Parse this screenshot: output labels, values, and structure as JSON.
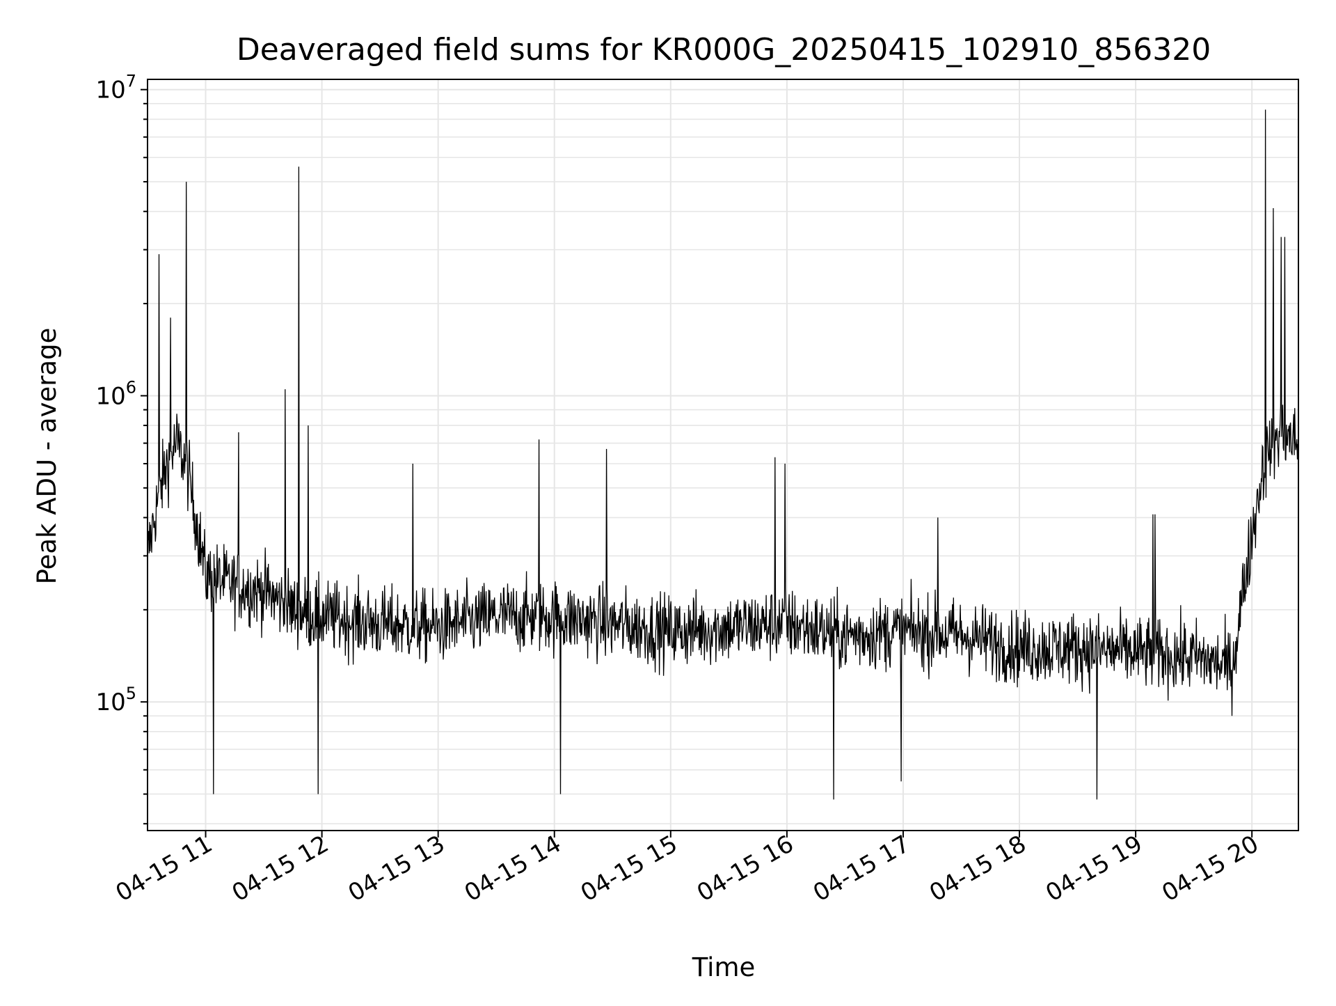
{
  "chart_data": {
    "type": "line",
    "title": "Deaveraged field sums for KR000G_20250415_102910_856320",
    "xlabel": "Time",
    "ylabel": "Peak ADU - average",
    "y_scale": "log",
    "ylim": [
      38000,
      10800000
    ],
    "xlim": [
      "2025-04-15 10:30",
      "2025-04-15 20:24"
    ],
    "grid": true,
    "line_color": "#000000",
    "grid_color": "#e6e6e6",
    "x_ticks": [
      {
        "value": "2025-04-15 11:00",
        "label": "04-15 11"
      },
      {
        "value": "2025-04-15 12:00",
        "label": "04-15 12"
      },
      {
        "value": "2025-04-15 13:00",
        "label": "04-15 13"
      },
      {
        "value": "2025-04-15 14:00",
        "label": "04-15 14"
      },
      {
        "value": "2025-04-15 15:00",
        "label": "04-15 15"
      },
      {
        "value": "2025-04-15 16:00",
        "label": "04-15 16"
      },
      {
        "value": "2025-04-15 17:00",
        "label": "04-15 17"
      },
      {
        "value": "2025-04-15 18:00",
        "label": "04-15 18"
      },
      {
        "value": "2025-04-15 19:00",
        "label": "04-15 19"
      },
      {
        "value": "2025-04-15 20:00",
        "label": "04-15 20"
      }
    ],
    "y_ticks": [
      {
        "value": 100000,
        "base": "10",
        "exp": "5"
      },
      {
        "value": 1000000,
        "base": "10",
        "exp": "6"
      },
      {
        "value": 10000000,
        "base": "10",
        "exp": "7"
      }
    ],
    "series": [
      {
        "points": [
          [
            "2025-04-15 10:30",
            300000
          ],
          [
            "2025-04-15 10:35",
            450000
          ],
          [
            "2025-04-15 10:40",
            600000
          ],
          [
            "2025-04-15 10:45",
            700000
          ],
          [
            "2025-04-15 10:50",
            600000
          ],
          [
            "2025-04-15 10:55",
            400000
          ],
          [
            "2025-04-15 11:00",
            260000
          ],
          [
            "2025-04-15 11:15",
            240000
          ],
          [
            "2025-04-15 11:30",
            230000
          ],
          [
            "2025-04-15 11:45",
            200000
          ],
          [
            "2025-04-15 12:00",
            190000
          ],
          [
            "2025-04-15 12:30",
            180000
          ],
          [
            "2025-04-15 13:00",
            175000
          ],
          [
            "2025-04-15 13:30",
            190000
          ],
          [
            "2025-04-15 14:00",
            190000
          ],
          [
            "2025-04-15 14:30",
            180000
          ],
          [
            "2025-04-15 15:00",
            170000
          ],
          [
            "2025-04-15 15:30",
            175000
          ],
          [
            "2025-04-15 16:00",
            180000
          ],
          [
            "2025-04-15 16:30",
            165000
          ],
          [
            "2025-04-15 17:00",
            170000
          ],
          [
            "2025-04-15 17:30",
            165000
          ],
          [
            "2025-04-15 18:00",
            150000
          ],
          [
            "2025-04-15 18:30",
            150000
          ],
          [
            "2025-04-15 19:00",
            145000
          ],
          [
            "2025-04-15 19:30",
            140000
          ],
          [
            "2025-04-15 19:50",
            130000
          ],
          [
            "2025-04-15 19:55",
            220000
          ],
          [
            "2025-04-15 20:00",
            350000
          ],
          [
            "2025-04-15 20:05",
            550000
          ],
          [
            "2025-04-15 20:10",
            700000
          ],
          [
            "2025-04-15 20:15",
            750000
          ],
          [
            "2025-04-15 20:24",
            700000
          ]
        ],
        "spikes": [
          [
            "2025-04-15 10:36",
            2900000
          ],
          [
            "2025-04-15 10:42",
            1800000
          ],
          [
            "2025-04-15 10:50",
            5000000
          ],
          [
            "2025-04-15 11:04",
            50000
          ],
          [
            "2025-04-15 11:17",
            760000
          ],
          [
            "2025-04-15 11:41",
            1050000
          ],
          [
            "2025-04-15 11:48",
            5600000
          ],
          [
            "2025-04-15 11:53",
            800000
          ],
          [
            "2025-04-15 11:58",
            50000
          ],
          [
            "2025-04-15 12:47",
            600000
          ],
          [
            "2025-04-15 13:52",
            720000
          ],
          [
            "2025-04-15 14:03",
            50000
          ],
          [
            "2025-04-15 14:27",
            670000
          ],
          [
            "2025-04-15 15:54",
            630000
          ],
          [
            "2025-04-15 15:59",
            600000
          ],
          [
            "2025-04-15 16:24",
            48000
          ],
          [
            "2025-04-15 16:59",
            55000
          ],
          [
            "2025-04-15 17:18",
            400000
          ],
          [
            "2025-04-15 18:40",
            48000
          ],
          [
            "2025-04-15 19:09",
            410000
          ],
          [
            "2025-04-15 19:10",
            410000
          ],
          [
            "2025-04-15 20:07",
            8600000
          ],
          [
            "2025-04-15 20:11",
            4100000
          ],
          [
            "2025-04-15 20:15",
            3300000
          ],
          [
            "2025-04-15 20:17",
            3300000
          ]
        ]
      }
    ]
  }
}
